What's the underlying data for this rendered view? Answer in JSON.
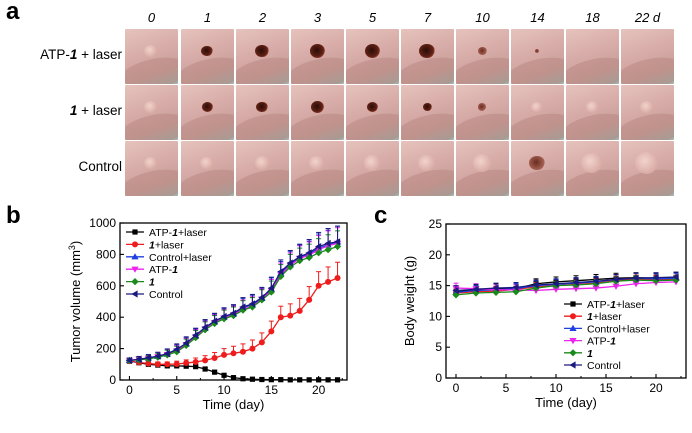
{
  "panels": {
    "a": "a",
    "b": "b",
    "c": "c"
  },
  "photo_grid": {
    "days": [
      "0",
      "1",
      "2",
      "3",
      "5",
      "7",
      "10",
      "14",
      "18",
      "22 d"
    ],
    "rows": [
      {
        "label_prefix": "ATP-",
        "label_bold": "1",
        "label_suffix": " + laser",
        "condition": "lesion"
      },
      {
        "label_prefix": "",
        "label_bold": "1",
        "label_suffix": " + laser",
        "condition": "partial"
      },
      {
        "label_prefix": "",
        "label_bold": "",
        "label_suffix": "Control",
        "condition": "tumor"
      }
    ]
  },
  "legend_labels": {
    "atp1_laser": {
      "prefix": "ATP-",
      "bold": "1",
      "suffix": "+laser"
    },
    "one_laser": {
      "prefix": "",
      "bold": "1",
      "suffix": "+laser"
    },
    "control_laser": {
      "prefix": "",
      "bold": "",
      "suffix": "Control+laser"
    },
    "atp1": {
      "prefix": "ATP-",
      "bold": "1",
      "suffix": ""
    },
    "one": {
      "prefix": "",
      "bold": "1",
      "suffix": ""
    },
    "control": {
      "prefix": "",
      "bold": "",
      "suffix": "Control"
    }
  },
  "series_colors": {
    "atp1_laser": "#000000",
    "one_laser": "#ee1c1c",
    "control_laser": "#1f3fe0",
    "atp1": "#ee22ee",
    "one": "#1a8a1a",
    "control": "#1a1a80"
  },
  "chart_data": [
    {
      "id": "tumor_volume",
      "type": "line",
      "xlabel": "Time (day)",
      "ylabel": "Tumor volume (mm",
      "ylabel_sup": "3",
      "ylabel_end": ")",
      "xlim": [
        -1,
        23
      ],
      "ylim": [
        0,
        1000
      ],
      "xticks": [
        0,
        5,
        10,
        15,
        20
      ],
      "yticks": [
        0,
        200,
        400,
        600,
        800,
        1000
      ],
      "legend_position": "top-left",
      "x": [
        0,
        1,
        2,
        3,
        4,
        5,
        6,
        7,
        8,
        9,
        10,
        11,
        12,
        13,
        14,
        15,
        16,
        17,
        18,
        19,
        20,
        21,
        22
      ],
      "series": [
        {
          "key": "atp1_laser",
          "marker": "square",
          "values": [
            120,
            110,
            100,
            95,
            90,
            90,
            88,
            85,
            70,
            50,
            30,
            15,
            8,
            5,
            3,
            2,
            2,
            1,
            1,
            1,
            1,
            1,
            1
          ],
          "errors": [
            15,
            15,
            15,
            15,
            15,
            15,
            15,
            15,
            12,
            10,
            8,
            5,
            3,
            2,
            2,
            1,
            1,
            1,
            1,
            1,
            1,
            1,
            1
          ]
        },
        {
          "key": "one_laser",
          "marker": "circle",
          "values": [
            120,
            112,
            105,
            100,
            100,
            102,
            108,
            115,
            125,
            140,
            160,
            170,
            180,
            200,
            240,
            310,
            400,
            410,
            440,
            510,
            600,
            625,
            650
          ],
          "errors": [
            15,
            15,
            15,
            15,
            15,
            18,
            20,
            25,
            30,
            35,
            40,
            45,
            50,
            55,
            60,
            65,
            70,
            75,
            80,
            85,
            90,
            95,
            100
          ]
        },
        {
          "key": "control_laser",
          "marker": "triangle-up",
          "values": [
            125,
            130,
            140,
            150,
            165,
            190,
            230,
            280,
            330,
            370,
            400,
            420,
            460,
            480,
            520,
            580,
            680,
            740,
            780,
            800,
            840,
            860,
            880
          ],
          "errors": [
            15,
            18,
            20,
            25,
            30,
            35,
            40,
            45,
            50,
            50,
            55,
            55,
            60,
            60,
            65,
            70,
            75,
            80,
            80,
            85,
            90,
            95,
            100
          ]
        },
        {
          "key": "atp1",
          "marker": "triangle-down",
          "values": [
            125,
            132,
            138,
            148,
            162,
            185,
            225,
            275,
            325,
            365,
            395,
            415,
            450,
            470,
            515,
            570,
            670,
            730,
            775,
            795,
            830,
            855,
            870
          ],
          "errors": [
            15,
            18,
            20,
            25,
            30,
            35,
            40,
            45,
            50,
            50,
            55,
            55,
            60,
            60,
            65,
            70,
            75,
            80,
            80,
            85,
            90,
            95,
            100
          ]
        },
        {
          "key": "one",
          "marker": "diamond",
          "values": [
            125,
            128,
            135,
            145,
            160,
            180,
            220,
            270,
            320,
            360,
            390,
            410,
            445,
            465,
            510,
            560,
            660,
            720,
            760,
            780,
            810,
            830,
            850
          ],
          "errors": [
            15,
            18,
            20,
            25,
            30,
            35,
            40,
            45,
            50,
            50,
            55,
            55,
            60,
            60,
            65,
            70,
            75,
            80,
            80,
            85,
            90,
            95,
            100
          ]
        },
        {
          "key": "control",
          "marker": "triangle-left",
          "values": [
            125,
            132,
            142,
            152,
            168,
            195,
            235,
            285,
            335,
            375,
            405,
            425,
            465,
            485,
            525,
            585,
            690,
            745,
            785,
            810,
            850,
            870,
            880
          ],
          "errors": [
            15,
            18,
            20,
            25,
            30,
            35,
            40,
            45,
            50,
            50,
            55,
            55,
            60,
            60,
            65,
            70,
            75,
            80,
            80,
            85,
            90,
            95,
            100
          ]
        }
      ]
    },
    {
      "id": "body_weight",
      "type": "line",
      "xlabel": "Time (day)",
      "ylabel": "Body weight (g)",
      "xlim": [
        -1,
        23
      ],
      "ylim": [
        0,
        25
      ],
      "xticks": [
        0,
        5,
        10,
        15,
        20
      ],
      "yticks": [
        0,
        5,
        10,
        15,
        20,
        25
      ],
      "legend_position": "bottom-right",
      "x": [
        0,
        2,
        4,
        6,
        8,
        10,
        12,
        14,
        16,
        18,
        20,
        22
      ],
      "series": [
        {
          "key": "atp1_laser",
          "marker": "square",
          "values": [
            14.0,
            14.3,
            14.5,
            14.5,
            15.3,
            15.6,
            15.8,
            16.0,
            16.2,
            16.3,
            16.2,
            16.3
          ],
          "errors": [
            0.8,
            0.8,
            0.8,
            0.8,
            0.8,
            0.8,
            0.8,
            0.8,
            0.8,
            0.8,
            0.8,
            0.8
          ]
        },
        {
          "key": "one_laser",
          "marker": "circle",
          "values": [
            13.8,
            14.0,
            14.1,
            14.4,
            14.8,
            15.0,
            15.2,
            15.4,
            15.8,
            16.0,
            16.0,
            16.0
          ],
          "errors": [
            0.7,
            0.7,
            0.7,
            0.7,
            0.7,
            0.7,
            0.7,
            0.7,
            0.7,
            0.7,
            0.7,
            0.7
          ]
        },
        {
          "key": "control_laser",
          "marker": "triangle-up",
          "values": [
            13.9,
            14.2,
            14.3,
            14.5,
            15.0,
            15.2,
            15.4,
            15.6,
            16.0,
            16.2,
            16.1,
            16.2
          ],
          "errors": [
            0.8,
            0.8,
            0.8,
            0.8,
            0.8,
            0.8,
            0.8,
            0.8,
            0.8,
            0.8,
            0.8,
            0.8
          ]
        },
        {
          "key": "atp1",
          "marker": "triangle-down",
          "values": [
            14.6,
            14.5,
            14.3,
            14.3,
            14.2,
            14.4,
            14.5,
            14.6,
            14.9,
            15.3,
            15.5,
            15.6
          ],
          "errors": [
            0.8,
            0.8,
            0.8,
            0.8,
            0.8,
            0.8,
            0.8,
            0.8,
            0.8,
            0.8,
            0.8,
            0.8
          ]
        },
        {
          "key": "one",
          "marker": "diamond",
          "values": [
            13.5,
            13.8,
            13.9,
            14.0,
            14.6,
            15.0,
            15.1,
            15.3,
            15.7,
            15.9,
            15.8,
            15.9
          ],
          "errors": [
            0.7,
            0.7,
            0.7,
            0.7,
            0.7,
            0.7,
            0.7,
            0.7,
            0.7,
            0.7,
            0.7,
            0.7
          ]
        },
        {
          "key": "control",
          "marker": "triangle-left",
          "values": [
            14.2,
            14.4,
            14.6,
            14.7,
            15.1,
            15.3,
            15.5,
            15.7,
            16.0,
            16.2,
            16.3,
            16.4
          ],
          "errors": [
            0.8,
            0.8,
            0.8,
            0.8,
            0.8,
            0.8,
            0.8,
            0.8,
            0.8,
            0.8,
            0.8,
            0.8
          ]
        }
      ]
    }
  ]
}
